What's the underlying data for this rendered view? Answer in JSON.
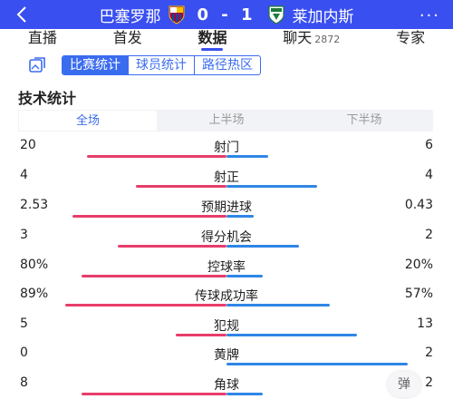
{
  "header": {
    "home_team": "巴塞罗那",
    "away_team": "莱加内斯",
    "score": "0 - 1",
    "home_logo": "fc-barcelona-crest",
    "away_logo": "leganes-crest",
    "back_icon": "chevron-left-icon",
    "more_icon": "more-dots-icon"
  },
  "tabs": [
    {
      "label": "直播",
      "sub": ""
    },
    {
      "label": "首发",
      "sub": ""
    },
    {
      "label": "数据",
      "sub": ""
    },
    {
      "label": "聊天",
      "sub": "2872"
    },
    {
      "label": "专家",
      "sub": ""
    }
  ],
  "active_tab": 2,
  "segments": [
    "比赛统计",
    "球员统计",
    "路径热区"
  ],
  "active_segment": 0,
  "section_title": "技术统计",
  "periods": [
    "全场",
    "上半场",
    "下半场"
  ],
  "active_period": 0,
  "stats": [
    {
      "name": "射门",
      "left": "20",
      "right": "6",
      "left_frac": 0.77,
      "right_frac": 0.23
    },
    {
      "name": "射正",
      "left": "4",
      "right": "4",
      "left_frac": 0.5,
      "right_frac": 0.5
    },
    {
      "name": "预期进球",
      "left": "2.53",
      "right": "0.43",
      "left_frac": 0.85,
      "right_frac": 0.15
    },
    {
      "name": "得分机会",
      "left": "3",
      "right": "2",
      "left_frac": 0.6,
      "right_frac": 0.4
    },
    {
      "name": "控球率",
      "left": "80%",
      "right": "20%",
      "left_frac": 0.8,
      "right_frac": 0.2
    },
    {
      "name": "传球成功率",
      "left": "89%",
      "right": "57%",
      "left_frac": 0.89,
      "right_frac": 0.57
    },
    {
      "name": "犯规",
      "left": "5",
      "right": "13",
      "left_frac": 0.28,
      "right_frac": 0.72
    },
    {
      "name": "黄牌",
      "left": "0",
      "right": "2",
      "left_frac": 0.0,
      "right_frac": 1.0
    },
    {
      "name": "角球",
      "left": "8",
      "right": "2",
      "left_frac": 0.8,
      "right_frac": 0.2
    }
  ],
  "danmu_label": "弹",
  "colors": {
    "header_bg": "#3a4ff0",
    "accent": "#3a6cf0",
    "home_bar": "#e73d6a",
    "away_bar": "#2f86e6"
  }
}
